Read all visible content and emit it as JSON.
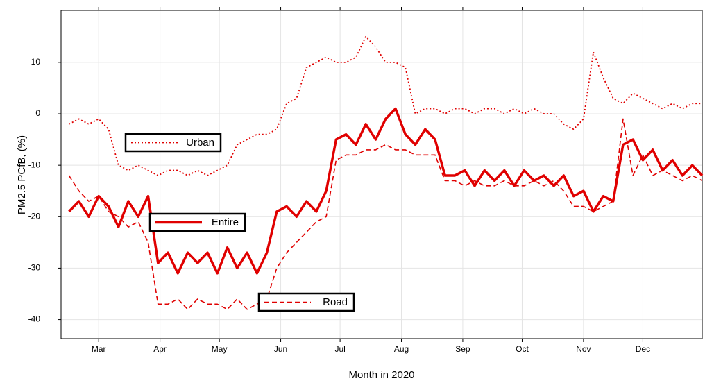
{
  "chart_data": {
    "type": "line",
    "xlabel": "Month in 2020",
    "ylabel": "PM2.5 PCfB, (%)",
    "xlim": [
      42,
      366
    ],
    "xticks": [
      {
        "value": 61,
        "label": "Mar"
      },
      {
        "value": 92,
        "label": "Apr"
      },
      {
        "value": 122,
        "label": "May"
      },
      {
        "value": 153,
        "label": "Jun"
      },
      {
        "value": 183,
        "label": "Jul"
      },
      {
        "value": 214,
        "label": "Aug"
      },
      {
        "value": 245,
        "label": "Sep"
      },
      {
        "value": 275,
        "label": "Oct"
      },
      {
        "value": 306,
        "label": "Nov"
      },
      {
        "value": 336,
        "label": "Dec"
      }
    ],
    "ylim": [
      -43.7,
      20.1
    ],
    "yticks": [
      -40,
      -30,
      -20,
      -10,
      0,
      10
    ],
    "grid": true,
    "x": [
      46,
      51,
      56,
      61,
      66,
      71,
      76,
      81,
      86,
      91,
      96,
      101,
      106,
      111,
      116,
      121,
      126,
      131,
      136,
      141,
      146,
      151,
      156,
      161,
      166,
      171,
      176,
      181,
      186,
      191,
      196,
      201,
      206,
      211,
      216,
      221,
      226,
      231,
      236,
      241,
      246,
      251,
      256,
      261,
      266,
      271,
      276,
      281,
      286,
      291,
      296,
      301,
      306,
      311,
      316,
      321,
      326,
      331,
      336,
      341,
      346,
      351,
      356,
      361,
      366
    ],
    "series": [
      {
        "name": "Urban",
        "color": "#e00000",
        "linestyle": "dotted",
        "values": [
          -2,
          -1,
          -2,
          -1,
          -3,
          -10,
          -11,
          -10,
          -11,
          -12,
          -11,
          -11,
          -12,
          -11,
          -12,
          -11,
          -10,
          -6,
          -5,
          -4,
          -4,
          -3,
          2,
          3,
          9,
          10,
          11,
          10,
          10,
          11,
          15,
          13,
          10,
          10,
          9,
          0,
          1,
          1,
          0,
          1,
          1,
          0,
          1,
          1,
          0,
          1,
          0,
          1,
          0,
          0,
          -2,
          -3,
          -1,
          12,
          7,
          3,
          2,
          4,
          3,
          2,
          1,
          2,
          1,
          2,
          2
        ]
      },
      {
        "name": "Entire",
        "color": "#e00000",
        "linestyle": "solid",
        "values": [
          -19,
          -17,
          -20,
          -16,
          -18,
          -22,
          -17,
          -20,
          -16,
          -29,
          -27,
          -31,
          -27,
          -29,
          -27,
          -31,
          -26,
          -30,
          -27,
          -31,
          -27,
          -19,
          -18,
          -20,
          -17,
          -19,
          -15,
          -5,
          -4,
          -6,
          -2,
          -5,
          -1,
          1,
          -4,
          -6,
          -3,
          -5,
          -12,
          -12,
          -11,
          -14,
          -11,
          -13,
          -11,
          -14,
          -11,
          -13,
          -12,
          -14,
          -12,
          -16,
          -15,
          -19,
          -16,
          -17,
          -6,
          -5,
          -9,
          -7,
          -11,
          -9,
          -12,
          -10,
          -12
        ]
      },
      {
        "name": "Road",
        "color": "#e00000",
        "linestyle": "dashed",
        "values": [
          -12,
          -15,
          -17,
          -16,
          -19,
          -20,
          -22,
          -21,
          -25,
          -37,
          -37,
          -36,
          -38,
          -36,
          -37,
          -37,
          -38,
          -36,
          -38,
          -37,
          -36,
          -30,
          -27,
          -25,
          -23,
          -21,
          -20,
          -9,
          -8,
          -8,
          -7,
          -7,
          -6,
          -7,
          -7,
          -8,
          -8,
          -8,
          -13,
          -13,
          -14,
          -13,
          -14,
          -14,
          -13,
          -14,
          -14,
          -13,
          -14,
          -13,
          -15,
          -18,
          -18,
          -19,
          -18,
          -17,
          -1,
          -12,
          -8,
          -12,
          -11,
          -12,
          -13,
          -12,
          -13
        ]
      }
    ]
  }
}
